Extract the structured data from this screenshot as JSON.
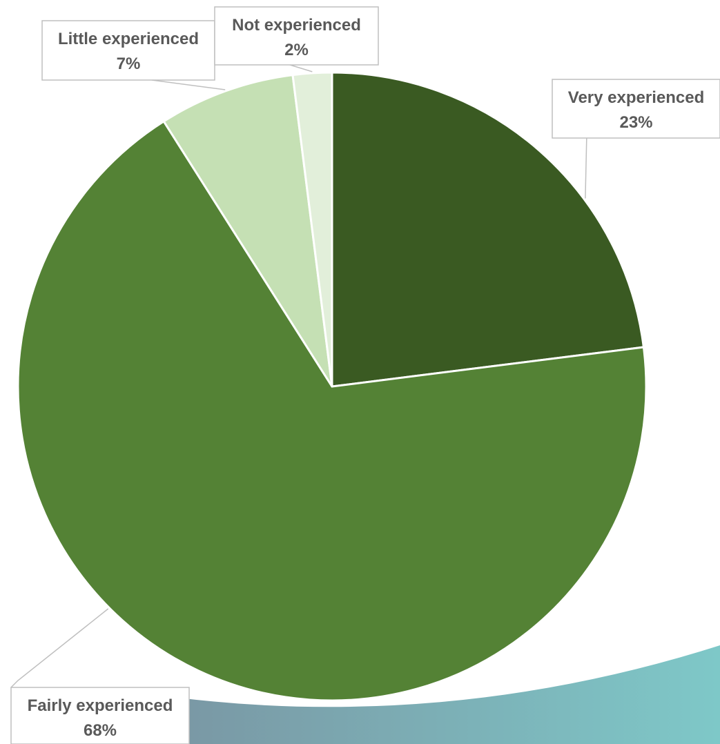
{
  "chart_data": {
    "type": "pie",
    "title": "",
    "start_angle_deg": 0,
    "direction": "clockwise",
    "legend": "none",
    "slices": [
      {
        "label": "Very experienced",
        "value": 23,
        "value_label": "23%",
        "color": "#3a5a22"
      },
      {
        "label": "Fairly experienced",
        "value": 68,
        "value_label": "68%",
        "color": "#548235"
      },
      {
        "label": "Little experienced",
        "value": 7,
        "value_label": "7%",
        "color": "#c5e0b4"
      },
      {
        "label": "Not experienced",
        "value": 2,
        "value_label": "2%",
        "color": "#e2efda"
      }
    ]
  },
  "colors": {
    "background": "#ffffff",
    "label_text": "#595959",
    "label_border": "#bfbfbf",
    "slice_separator": "#ffffff",
    "photo_teal": "#7ec8c8",
    "photo_slate": "#7a97a4"
  }
}
